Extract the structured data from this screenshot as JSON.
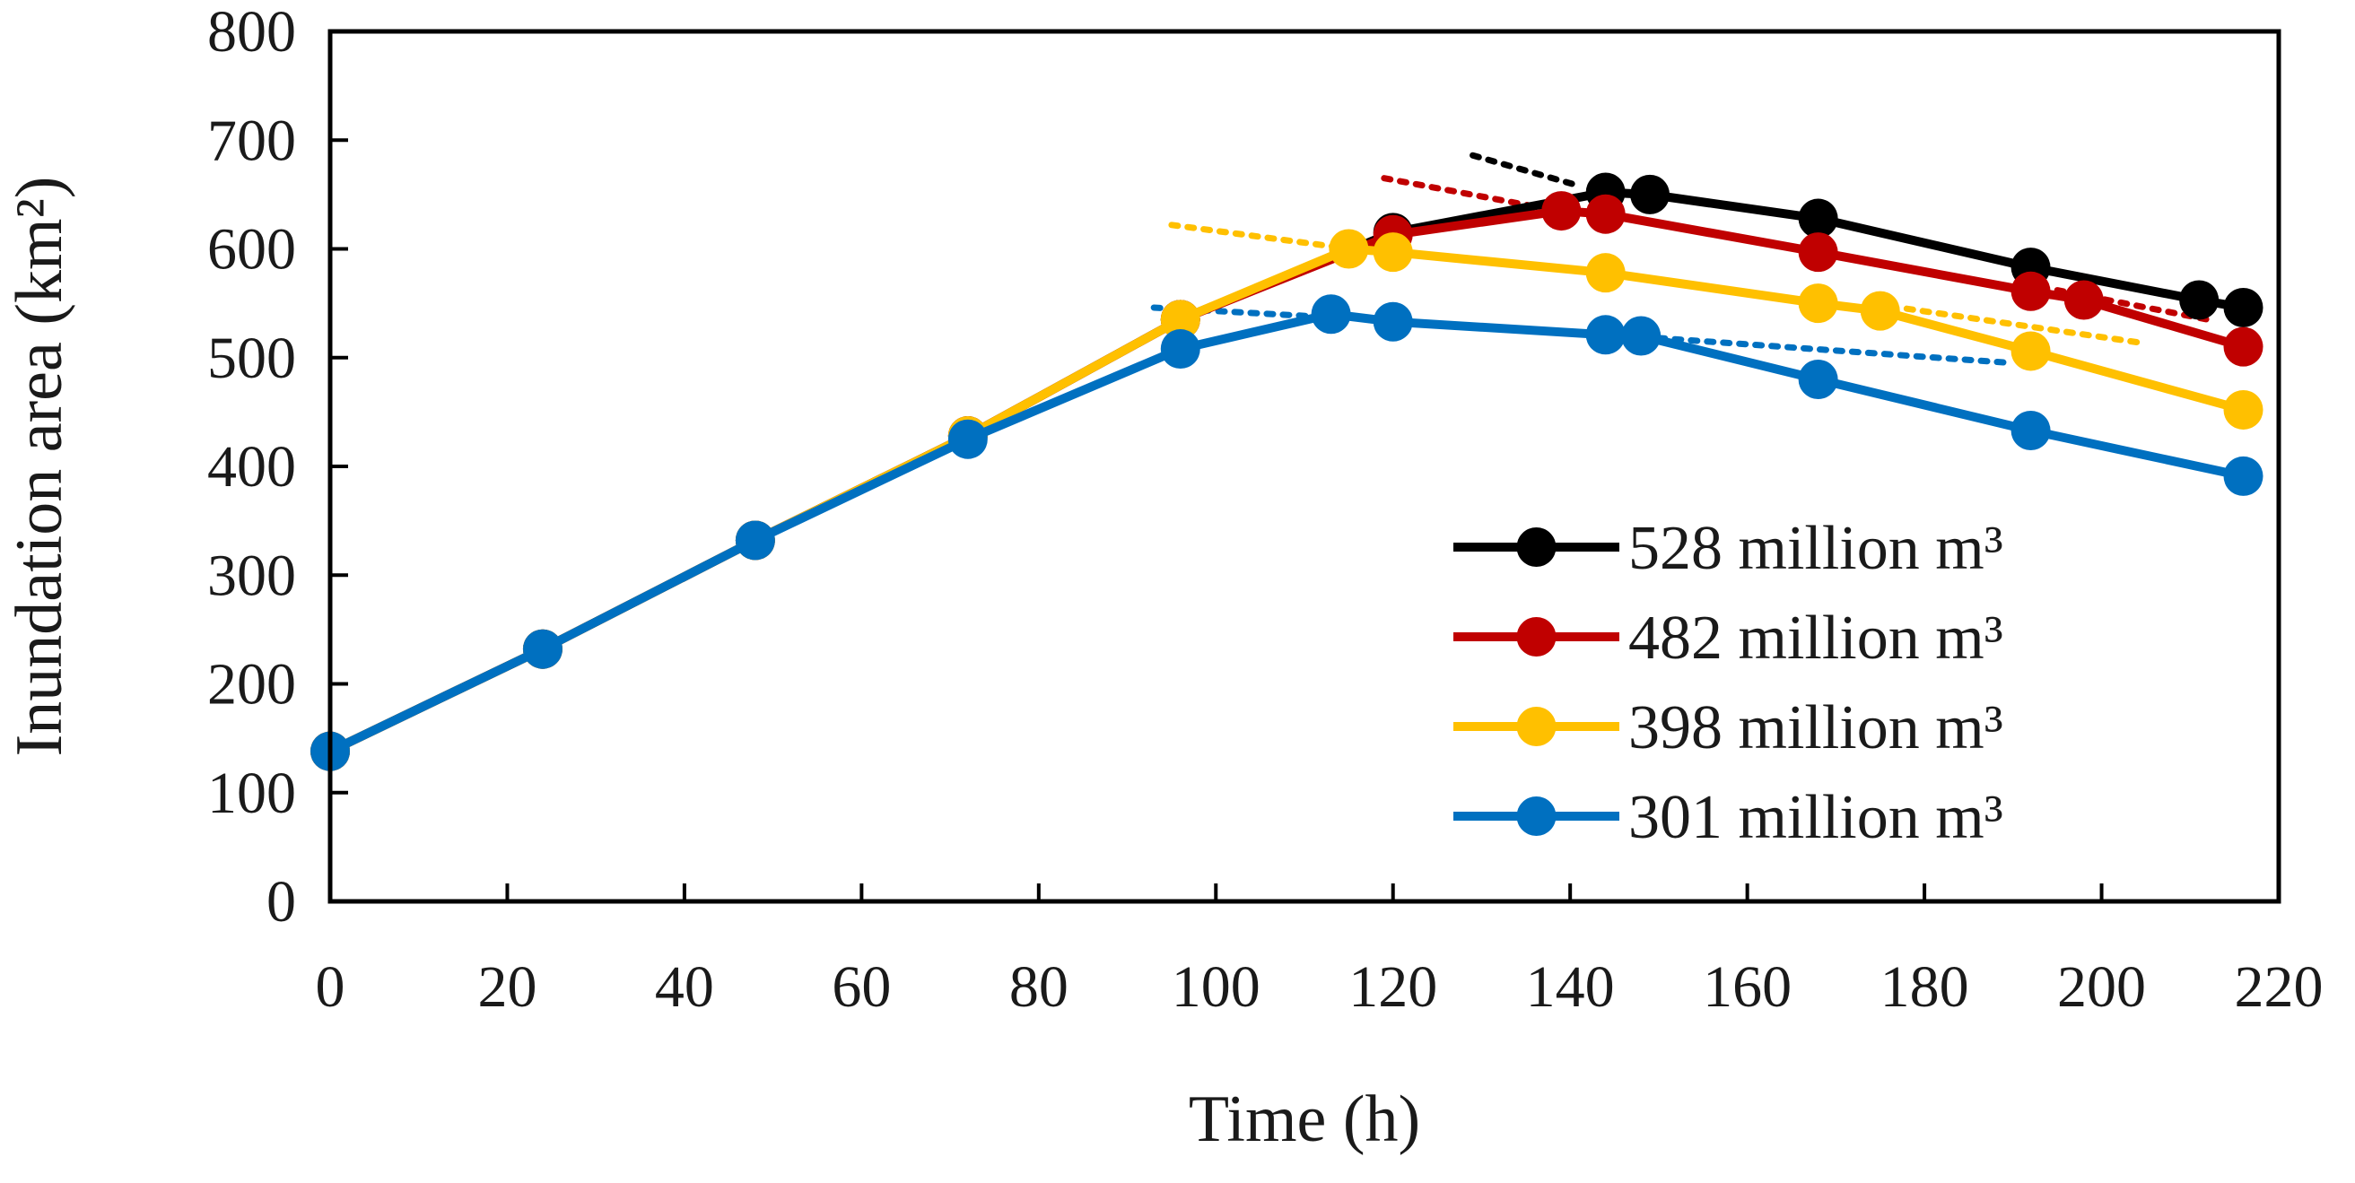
{
  "chart_data": {
    "type": "line",
    "title": "",
    "xlabel": "Time (h)",
    "ylabel": "Inundation area (km²)",
    "xlim": [
      0,
      220
    ],
    "ylim": [
      0,
      800
    ],
    "x_ticks": [
      "0",
      "20",
      "40",
      "60",
      "80",
      "100",
      "120",
      "140",
      "160",
      "180",
      "200",
      "220"
    ],
    "y_ticks": [
      "0",
      "100",
      "200",
      "300",
      "400",
      "500",
      "600",
      "700",
      "800"
    ],
    "grid": false,
    "legend_position": "bottom-right",
    "series": [
      {
        "name": "528 million m³",
        "color": "#000000",
        "x": [
          0,
          24,
          48,
          72,
          96,
          120,
          144,
          149,
          168,
          192,
          211,
          216
        ],
        "y": [
          138,
          232,
          332,
          428,
          535,
          615,
          652,
          650,
          628,
          583,
          553,
          546
        ]
      },
      {
        "name": "482 million m³",
        "color": "#C00000",
        "x": [
          0,
          24,
          48,
          72,
          96,
          120,
          139,
          144,
          168,
          192,
          198,
          216
        ],
        "y": [
          138,
          232,
          332,
          428,
          535,
          613,
          635,
          632,
          597,
          561,
          553,
          510
        ]
      },
      {
        "name": "398 million m³",
        "color": "#FFC000",
        "x": [
          0,
          24,
          48,
          72,
          96,
          115,
          120,
          144,
          168,
          175,
          192,
          216
        ],
        "y": [
          138,
          232,
          332,
          428,
          535,
          600,
          597,
          578,
          550,
          543,
          506,
          452
        ]
      },
      {
        "name": "301 million m³",
        "color": "#0070C0",
        "x": [
          0,
          24,
          48,
          72,
          96,
          113,
          120,
          144,
          148,
          168,
          192,
          216
        ],
        "y": [
          138,
          232,
          332,
          425,
          508,
          540,
          533,
          521,
          520,
          480,
          433,
          391
        ]
      }
    ],
    "trend_lines": [
      {
        "series": "528 million m³",
        "color": "#000000",
        "x": [
          129,
          141
        ],
        "y": [
          686,
          658
        ]
      },
      {
        "series": "528 million m³",
        "color": "#000000",
        "x": [
          190,
          216
        ],
        "y": [
          585,
          545
        ]
      },
      {
        "series": "482 million m³",
        "color": "#C00000",
        "x": [
          119,
          138
        ],
        "y": [
          665,
          636
        ]
      },
      {
        "series": "482 million m³",
        "color": "#C00000",
        "x": [
          195,
          212
        ],
        "y": [
          562,
          535
        ]
      },
      {
        "series": "398 million m³",
        "color": "#FFC000",
        "x": [
          95,
          118
        ],
        "y": [
          622,
          597
        ]
      },
      {
        "series": "398 million m³",
        "color": "#FFC000",
        "x": [
          178,
          205
        ],
        "y": [
          545,
          513
        ]
      },
      {
        "series": "301 million m³",
        "color": "#0070C0",
        "x": [
          93,
          111
        ],
        "y": [
          546,
          538
        ]
      },
      {
        "series": "301 million m³",
        "color": "#0070C0",
        "x": [
          150,
          190
        ],
        "y": [
          518,
          495
        ]
      }
    ]
  }
}
